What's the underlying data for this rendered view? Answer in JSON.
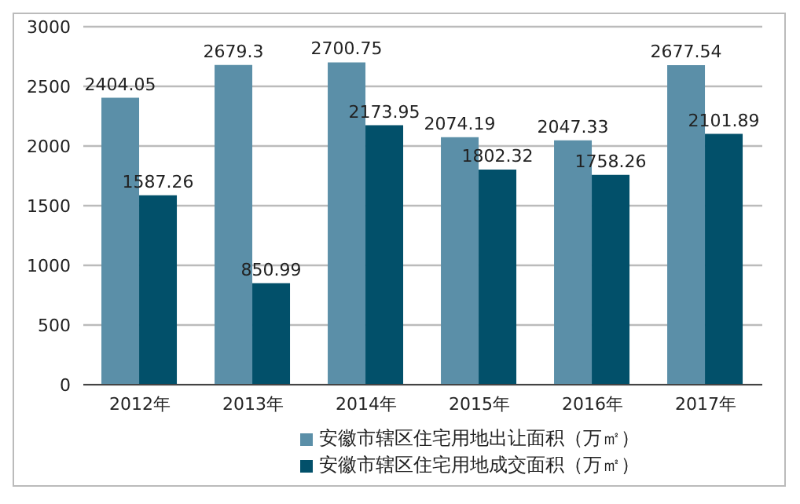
{
  "chart_data": {
    "type": "bar",
    "categories": [
      "2012年",
      "2013年",
      "2014年",
      "2015年",
      "2016年",
      "2017年"
    ],
    "series": [
      {
        "name": "安徽市辖区住宅用地出让面积（万㎡）",
        "color": "#5b8fa8",
        "values": [
          2404.05,
          2679.3,
          2700.75,
          2074.19,
          2047.33,
          2677.54
        ]
      },
      {
        "name": "安徽市辖区住宅用地成交面积（万㎡）",
        "color": "#02506a",
        "values": [
          1587.26,
          850.99,
          2173.95,
          1802.32,
          1758.26,
          2101.89
        ]
      }
    ],
    "ylim": [
      0,
      3000
    ],
    "yticks": [
      0,
      500,
      1000,
      1500,
      2000,
      2500,
      3000
    ],
    "grid": "y",
    "legend": "bottom",
    "data_labels": true
  }
}
